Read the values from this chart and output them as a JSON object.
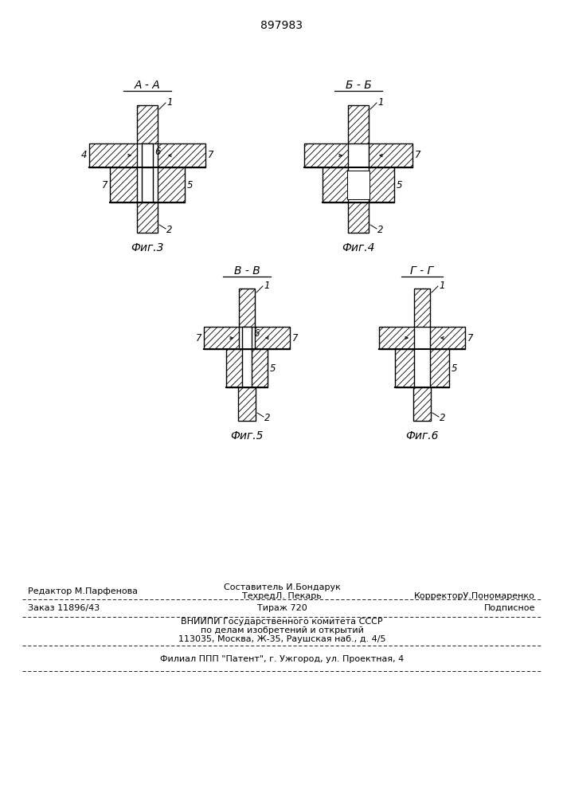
{
  "patent_number": "897983",
  "bg": "#ffffff",
  "fig3_label": "А - А",
  "fig4_label": "Б - Б",
  "fig5_label": "В - В",
  "fig6_label": "Г - Г",
  "fig3_caption": "Фиг.3",
  "fig4_caption": "Фиг.4",
  "fig5_caption": "Фиг.5",
  "fig6_caption": "Фиг.6",
  "footer_ed": "Редактор М.Парфенова",
  "footer_comp": "Составитель И.Бондарук",
  "footer_tech": "ТехредЛ. Пекарь",
  "footer_corr": "КорректорУ.Пономаренко",
  "footer_order": "Заказ 11896/43",
  "footer_tir": "Тираж 720",
  "footer_sub": "Подписное",
  "footer_vniip": "ВНИИПИ Государственного комитета СССР",
  "footer_delo": "по делам изобретений и открытий",
  "footer_addr": "113035, Москва, Ж-35, Раушская наб., д. 4/5",
  "footer_fil": "Филиал ППП \"Патент\", г. Ужгород, ул. Проектная, 4"
}
